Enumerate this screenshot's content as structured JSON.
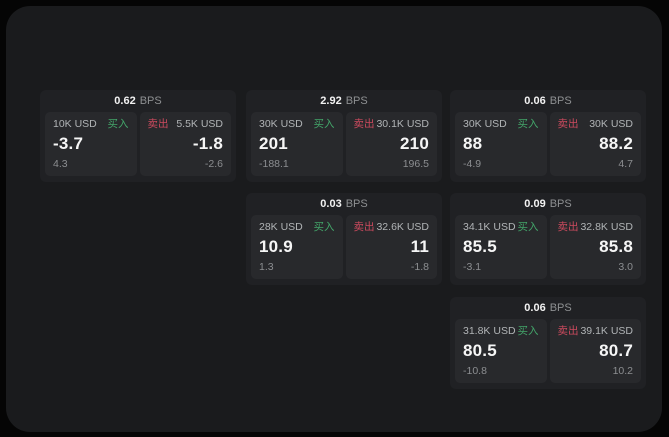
{
  "labels": {
    "bps_unit": "BPS",
    "buy": "买入",
    "sell": "卖出"
  },
  "colors": {
    "buy": "#43a56a",
    "sell": "#cc4a5e",
    "background": "#050505",
    "panel_surface": "#1a1b1d",
    "card_surface": "#202124",
    "tile_surface": "#28292c"
  },
  "cards": [
    {
      "bps": "0.62",
      "buy": {
        "size": "10K USD",
        "price": "-3.7",
        "sub": "4.3"
      },
      "sell": {
        "size": "5.5K USD",
        "price": "-1.8",
        "sub": "-2.6"
      }
    },
    {
      "bps": "2.92",
      "buy": {
        "size": "30K USD",
        "price": "201",
        "sub": "-188.1"
      },
      "sell": {
        "size": "30.1K USD",
        "price": "210",
        "sub": "196.5"
      }
    },
    {
      "bps": "0.06",
      "buy": {
        "size": "30K USD",
        "price": "88",
        "sub": "-4.9"
      },
      "sell": {
        "size": "30K USD",
        "price": "88.2",
        "sub": "4.7"
      }
    },
    {
      "bps": "0.03",
      "buy": {
        "size": "28K USD",
        "price": "10.9",
        "sub": "1.3"
      },
      "sell": {
        "size": "32.6K USD",
        "price": "11",
        "sub": "-1.8"
      }
    },
    {
      "bps": "0.09",
      "buy": {
        "size": "34.1K USD",
        "price": "85.5",
        "sub": "-3.1"
      },
      "sell": {
        "size": "32.8K USD",
        "price": "85.8",
        "sub": "3.0"
      }
    },
    {
      "bps": "0.06",
      "buy": {
        "size": "31.8K USD",
        "price": "80.5",
        "sub": "-10.8"
      },
      "sell": {
        "size": "39.1K USD",
        "price": "80.7",
        "sub": "10.2"
      }
    }
  ]
}
